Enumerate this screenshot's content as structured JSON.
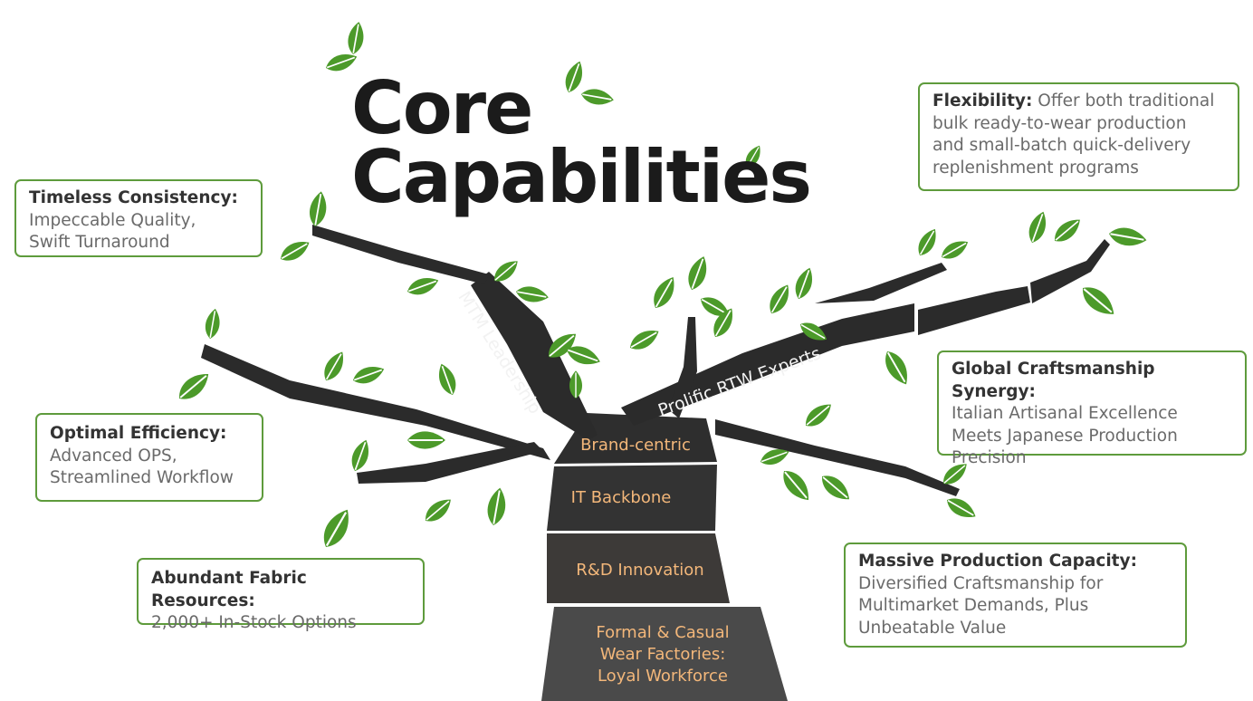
{
  "title": {
    "line1": "Core",
    "line2": "Capabilities"
  },
  "trunk": [
    {
      "label": "Brand-centric"
    },
    {
      "label": "IT Backbone"
    },
    {
      "label": "R&D Innovation"
    },
    {
      "label_lines": [
        "Formal & Casual",
        "Wear Factories:",
        "Loyal Workforce"
      ]
    }
  ],
  "branches": {
    "left": "MTM Leadership",
    "right": "Prolific RTW Experts"
  },
  "callouts": {
    "timeless": {
      "head": "Timeless Consistency:",
      "body": [
        "Impeccable Quality,",
        "Swift Turnaround"
      ]
    },
    "efficiency": {
      "head": "Optimal Efficiency:",
      "body": [
        "Advanced OPS,",
        "Streamlined Workflow"
      ]
    },
    "fabric": {
      "head": "Abundant Fabric Resources:",
      "body": [
        "2,000+ In-Stock Options"
      ]
    },
    "flexibility": {
      "head": "Flexibility:",
      "body_first": "Offer both traditional",
      "body": [
        "bulk ready-to-wear production",
        "and small-batch quick-delivery",
        "replenishment programs"
      ]
    },
    "global": {
      "head": "Global Craftsmanship Synergy:",
      "body": [
        "Italian Artisanal Excellence",
        "Meets Japanese Production",
        "Precision"
      ]
    },
    "capacity": {
      "head": "Massive Production Capacity:",
      "body": [
        "Diversified Craftsmanship for",
        "Multimarket Demands, Plus",
        "Unbeatable Value"
      ]
    }
  },
  "colors": {
    "leaf": "#4c9a2a",
    "leaf_vein": "#ffffff",
    "branch": "#2b2b2b",
    "border": "#5e9b3c",
    "trunk_text": "#f3b77a"
  }
}
